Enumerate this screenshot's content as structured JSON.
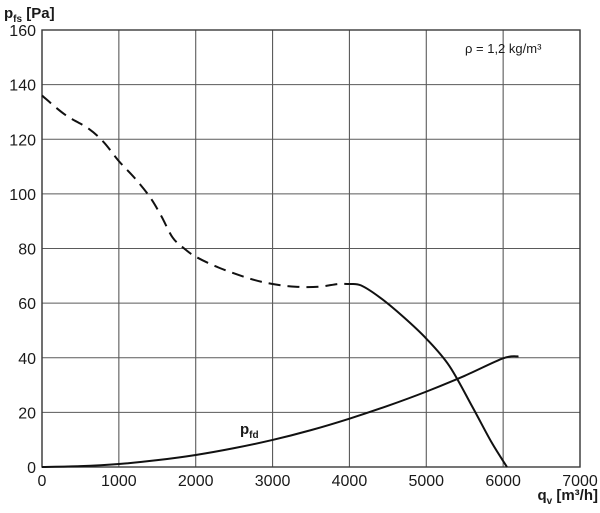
{
  "chart_data": {
    "type": "line",
    "ylabel_main": "p",
    "ylabel_sub": "fs",
    "ylabel_unit": " [Pa]",
    "xlabel_main": "q",
    "xlabel_sub": "v",
    "xlabel_unit": " [m³/h]",
    "annotation": "ρ = 1,2 kg/m³",
    "xlim": [
      0,
      7000
    ],
    "ylim": [
      0,
      160
    ],
    "x_ticks": [
      0,
      1000,
      2000,
      3000,
      4000,
      5000,
      6000,
      7000
    ],
    "y_ticks": [
      0,
      20,
      40,
      60,
      80,
      100,
      120,
      140,
      160
    ],
    "grid": true,
    "series": [
      {
        "style": "dashed",
        "x": [
          0,
          300,
          600,
          800,
          1000,
          1200,
          1400,
          1550,
          1700,
          1850,
          2000,
          2300,
          2700,
          3000,
          3300,
          3600,
          3850,
          4000
        ],
        "y": [
          136,
          129,
          124,
          119,
          112,
          106,
          99,
          92,
          84,
          80,
          77,
          73,
          69,
          67,
          66,
          66,
          67,
          67
        ]
      },
      {
        "style": "solid",
        "x": [
          4000,
          4150,
          4400,
          4700,
          5000,
          5300,
          5600,
          5850,
          6050
        ],
        "y": [
          67,
          66.5,
          62,
          55,
          47,
          37,
          22,
          9,
          0
        ]
      },
      {
        "name": "p",
        "name_sub": "fd",
        "style": "solid",
        "x": [
          0,
          500,
          1000,
          1500,
          2000,
          2500,
          3000,
          3500,
          4000,
          4500,
          5000,
          5500,
          6000,
          6200
        ],
        "y": [
          0,
          0.3,
          1.1,
          2.5,
          4.4,
          6.9,
          9.9,
          13.5,
          17.7,
          22.4,
          27.6,
          33.4,
          39.8,
          40.5
        ]
      }
    ]
  }
}
